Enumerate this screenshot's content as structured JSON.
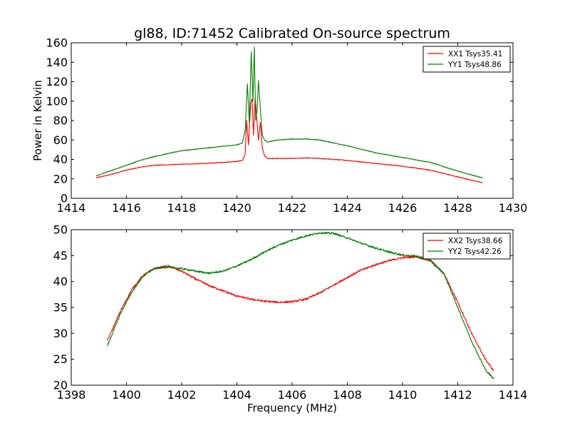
{
  "figure": {
    "title": "gl88, ID:71452 Calibrated On-source spectrum"
  },
  "chart_data": [
    {
      "type": "line",
      "title": "gl88, ID:71452 Calibrated On-source spectrum",
      "xlabel": "",
      "ylabel": "Power in Kelvin",
      "xlim": [
        1414,
        1430
      ],
      "ylim": [
        0,
        160
      ],
      "xticks": [
        1414,
        1416,
        1418,
        1420,
        1422,
        1424,
        1426,
        1428,
        1430
      ],
      "yticks": [
        0,
        20,
        40,
        60,
        80,
        100,
        120,
        140,
        160
      ],
      "grid": false,
      "legend_position": "top-right",
      "series": [
        {
          "name": "XX1 Tsys35.41",
          "color": "#ff0000",
          "x": [
            1414.9,
            1415.5,
            1416.0,
            1416.5,
            1417.0,
            1418.0,
            1419.0,
            1420.0,
            1420.2,
            1420.3,
            1420.35,
            1420.42,
            1420.5,
            1420.55,
            1420.6,
            1420.66,
            1420.72,
            1420.78,
            1420.85,
            1420.92,
            1421.0,
            1421.1,
            1421.5,
            1422.0,
            1422.5,
            1423.0,
            1424.0,
            1425.0,
            1426.0,
            1427.0,
            1428.0,
            1428.9
          ],
          "y": [
            21,
            25,
            29,
            32,
            34,
            35,
            36,
            38,
            39,
            45,
            80,
            55,
            98,
            102,
            65,
            104,
            82,
            60,
            78,
            52,
            44,
            41,
            41,
            41,
            41.5,
            41,
            39,
            36,
            33,
            29,
            22,
            16
          ]
        },
        {
          "name": "YY1 Tsys48.86",
          "color": "#008000",
          "x": [
            1414.9,
            1415.5,
            1416.0,
            1416.5,
            1417.0,
            1418.0,
            1419.0,
            1420.0,
            1420.2,
            1420.3,
            1420.38,
            1420.45,
            1420.52,
            1420.58,
            1420.63,
            1420.68,
            1420.73,
            1420.78,
            1420.85,
            1420.92,
            1421.0,
            1421.1,
            1421.5,
            1422.0,
            1422.5,
            1423.0,
            1424.0,
            1425.0,
            1426.0,
            1427.0,
            1428.0,
            1428.9
          ],
          "y": [
            23,
            29,
            34,
            39,
            43,
            49,
            52,
            55,
            57,
            70,
            118,
            78,
            151,
            100,
            156,
            80,
            90,
            121,
            92,
            65,
            60,
            58,
            60,
            61,
            61,
            60,
            54,
            47,
            42,
            37,
            28,
            21
          ]
        }
      ]
    },
    {
      "type": "line",
      "title": "",
      "xlabel": "Frequency (MHz)",
      "ylabel": "",
      "xlim": [
        1398,
        1414
      ],
      "ylim": [
        20,
        50
      ],
      "xticks": [
        1398,
        1400,
        1402,
        1404,
        1406,
        1408,
        1410,
        1412,
        1414
      ],
      "yticks": [
        20,
        25,
        30,
        35,
        40,
        45,
        50
      ],
      "grid": false,
      "legend_position": "top-right",
      "series": [
        {
          "name": "XX2 Tsys38.66",
          "color": "#ff0000",
          "x": [
            1399.3,
            1399.8,
            1400.2,
            1400.6,
            1401.0,
            1401.5,
            1402.0,
            1402.5,
            1403.0,
            1403.5,
            1404.0,
            1404.5,
            1405.0,
            1405.5,
            1406.0,
            1406.5,
            1407.0,
            1407.5,
            1408.0,
            1408.5,
            1409.0,
            1409.5,
            1410.0,
            1410.5,
            1411.0,
            1411.5,
            1412.0,
            1412.5,
            1413.0,
            1413.3
          ],
          "y": [
            28.5,
            34.5,
            38.5,
            41.2,
            42.5,
            43.0,
            42.0,
            40.5,
            39.2,
            38.2,
            37.2,
            36.6,
            36.2,
            36.0,
            36.1,
            36.6,
            37.8,
            39.3,
            40.8,
            42.2,
            43.2,
            44.0,
            44.6,
            44.8,
            44.0,
            41.5,
            36.0,
            30.0,
            25.0,
            22.8
          ]
        },
        {
          "name": "YY2 Tsys42.26",
          "color": "#008000",
          "x": [
            1399.3,
            1399.8,
            1400.2,
            1400.6,
            1401.0,
            1401.5,
            1402.0,
            1402.5,
            1403.0,
            1403.5,
            1404.0,
            1404.5,
            1405.0,
            1405.5,
            1406.0,
            1406.5,
            1407.0,
            1407.5,
            1408.0,
            1408.5,
            1409.0,
            1409.5,
            1410.0,
            1410.5,
            1411.0,
            1411.5,
            1412.0,
            1412.5,
            1413.0,
            1413.3
          ],
          "y": [
            27.5,
            34.0,
            38.0,
            41.0,
            42.5,
            42.8,
            42.5,
            42.0,
            41.6,
            42.0,
            43.0,
            44.2,
            45.7,
            47.0,
            48.0,
            48.8,
            49.4,
            49.3,
            48.4,
            47.4,
            46.5,
            45.7,
            45.1,
            44.9,
            44.2,
            41.5,
            35.0,
            28.5,
            23.0,
            21.2
          ]
        }
      ]
    }
  ]
}
